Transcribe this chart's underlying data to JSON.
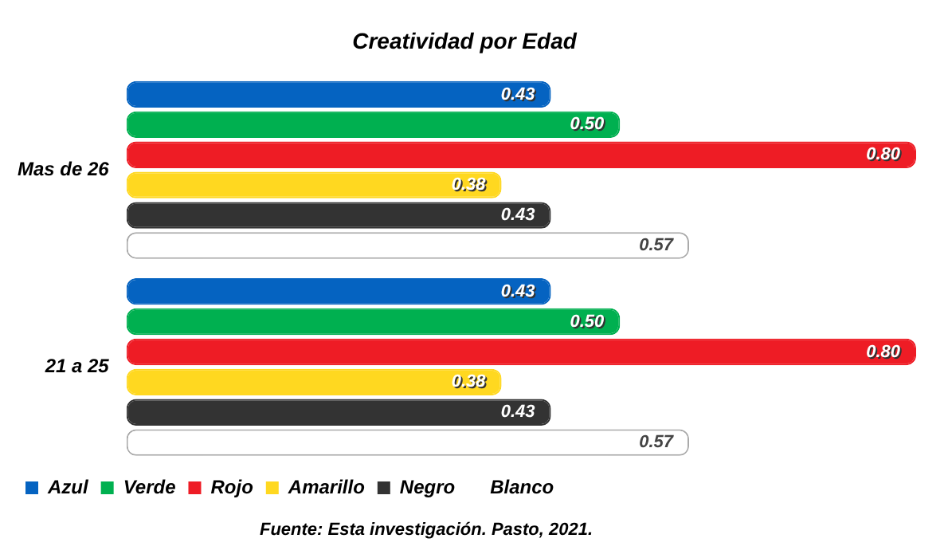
{
  "chart_data": {
    "type": "bar",
    "orientation": "horizontal",
    "title": "Creatividad por Edad",
    "categories": [
      "Mas de 26",
      "21 a 25"
    ],
    "series": [
      {
        "name": "Azul",
        "color": "#0563c1",
        "values": [
          0.43,
          0.43
        ],
        "value_labels": [
          "0.43",
          "0.43"
        ]
      },
      {
        "name": "Verde",
        "color": "#00b050",
        "values": [
          0.5,
          0.5
        ],
        "value_labels": [
          "0.50",
          "0.50"
        ]
      },
      {
        "name": "Rojo",
        "color": "#ee1c25",
        "values": [
          0.8,
          0.8
        ],
        "value_labels": [
          "0.80",
          "0.80"
        ]
      },
      {
        "name": "Amarillo",
        "color": "#ffd820",
        "values": [
          0.38,
          0.38
        ],
        "value_labels": [
          "0.38",
          "0.38"
        ]
      },
      {
        "name": "Negro",
        "color": "#333333",
        "values": [
          0.43,
          0.43
        ],
        "value_labels": [
          "0.43",
          "0.43"
        ]
      },
      {
        "name": "Blanco",
        "color": "#ffffff",
        "values": [
          0.57,
          0.57
        ],
        "value_labels": [
          "0.57",
          "0.57"
        ]
      }
    ],
    "legend": "bottom",
    "annotations": [
      "Fuente: Esta investigación. Pasto, 2021."
    ]
  }
}
